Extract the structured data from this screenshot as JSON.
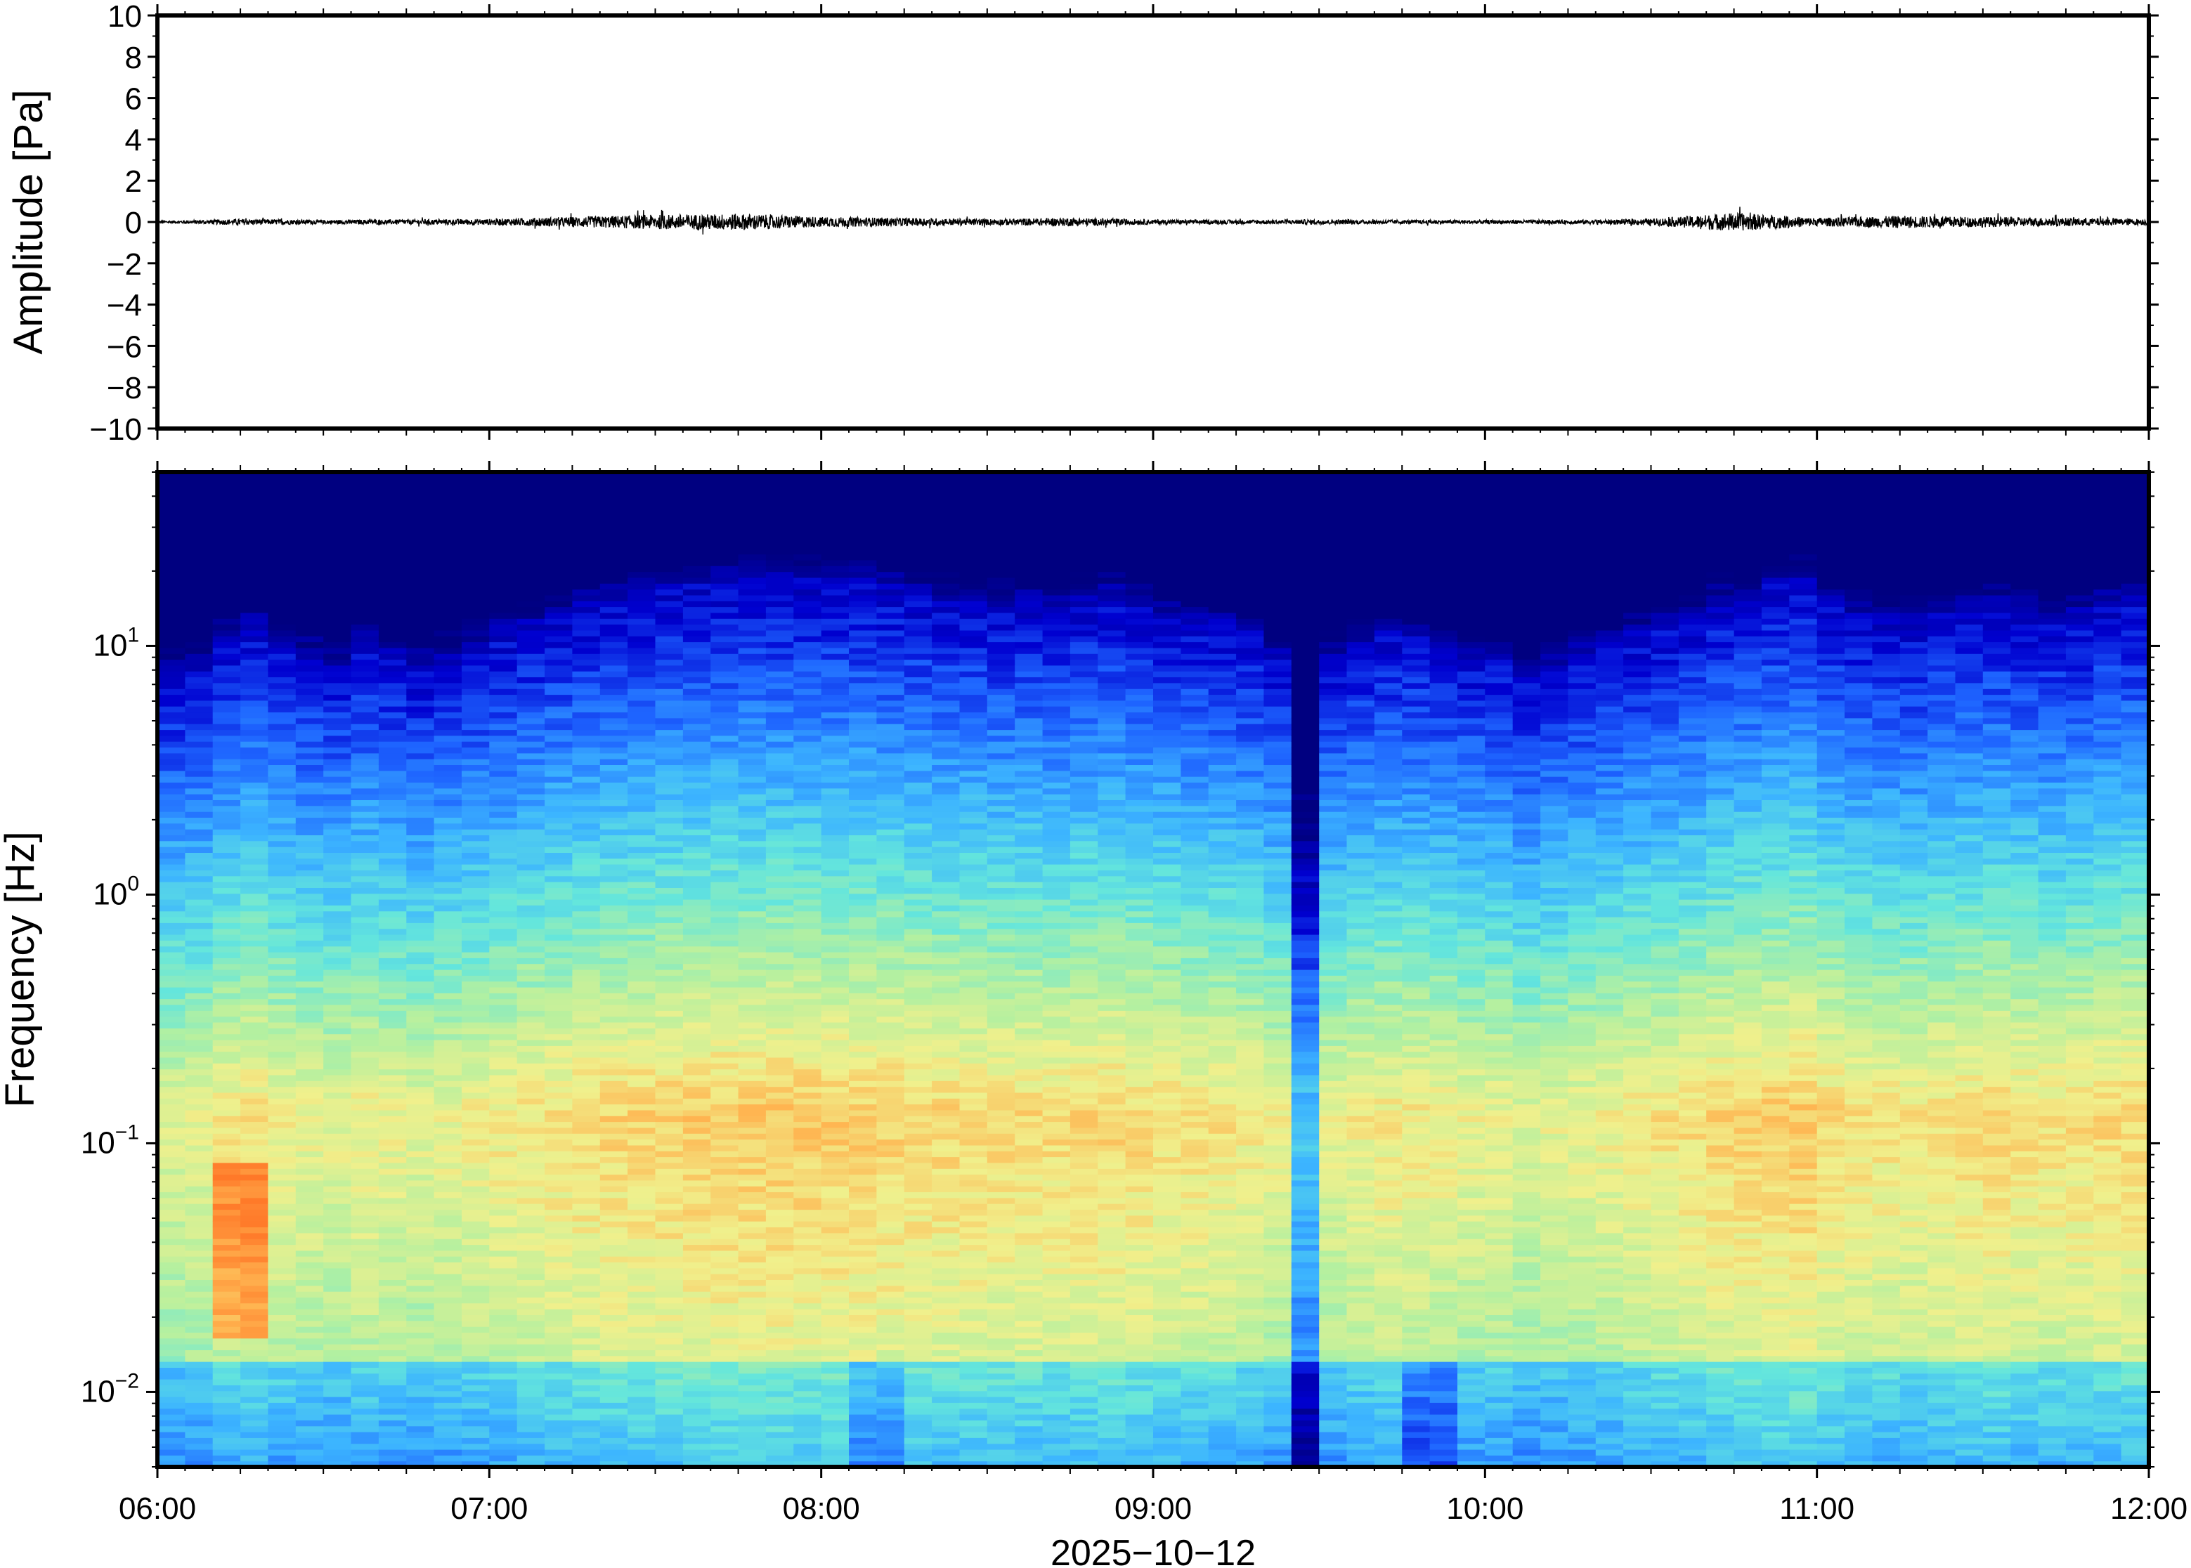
{
  "chart_data": [
    {
      "type": "line",
      "panel": "waveform",
      "title": "",
      "ylabel": "Amplitude [Pa]",
      "xlabel": "",
      "ylim": [
        -10,
        10
      ],
      "yticks": [
        10,
        8,
        6,
        4,
        2,
        0,
        -2,
        -4,
        -6,
        -8,
        -10
      ],
      "ytick_labels": [
        "10",
        "8",
        "6",
        "4",
        "2",
        "0",
        "−2",
        "−4",
        "−6",
        "−8",
        "−10"
      ],
      "xlim": [
        "06:00",
        "12:00"
      ],
      "series": [
        {
          "color": "#000000",
          "x": [
            "06:00",
            "06:15",
            "06:30",
            "06:45",
            "07:00",
            "07:15",
            "07:30",
            "07:45",
            "08:00",
            "08:15",
            "08:30",
            "08:45",
            "09:00",
            "09:15",
            "09:30",
            "09:45",
            "10:00",
            "10:15",
            "10:30",
            "10:45",
            "11:00",
            "11:15",
            "11:30",
            "11:45",
            "12:00"
          ],
          "envelope": [
            0.05,
            0.15,
            0.1,
            0.12,
            0.15,
            0.25,
            0.35,
            0.4,
            0.25,
            0.2,
            0.15,
            0.2,
            0.12,
            0.1,
            0.12,
            0.1,
            0.1,
            0.1,
            0.15,
            0.45,
            0.2,
            0.3,
            0.25,
            0.2,
            0.15
          ]
        }
      ]
    },
    {
      "type": "heatmap",
      "panel": "spectrogram",
      "title": "",
      "ylabel": "Frequency [Hz]",
      "xlabel": "2025−10−12",
      "yscale": "log",
      "ylim": [
        0.005,
        50
      ],
      "yticks": [
        10,
        1,
        0.1,
        0.01
      ],
      "ytick_labels": [
        {
          "base": "10",
          "exp": "1"
        },
        {
          "base": "10",
          "exp": "0"
        },
        {
          "base": "10",
          "exp": "−1"
        },
        {
          "base": "10",
          "exp": "−2"
        }
      ],
      "xticks": [
        "06:00",
        "07:00",
        "08:00",
        "09:00",
        "10:00",
        "11:00",
        "12:00"
      ],
      "colormap": [
        "#000080",
        "#0000d0",
        "#1e64ff",
        "#3cb4ff",
        "#64e6dc",
        "#b4f0a0",
        "#f0f08c",
        "#ffb450",
        "#ff7828"
      ],
      "time_columns": 72,
      "activity_by_column": [
        0.35,
        0.4,
        0.55,
        0.6,
        0.5,
        0.45,
        0.4,
        0.5,
        0.45,
        0.4,
        0.45,
        0.5,
        0.55,
        0.6,
        0.65,
        0.7,
        0.72,
        0.75,
        0.78,
        0.8,
        0.82,
        0.82,
        0.83,
        0.82,
        0.8,
        0.8,
        0.78,
        0.75,
        0.72,
        0.72,
        0.7,
        0.7,
        0.68,
        0.72,
        0.75,
        0.7,
        0.65,
        0.62,
        0.6,
        0.55,
        0.45,
        0.3,
        0.42,
        0.5,
        0.55,
        0.55,
        0.5,
        0.45,
        0.45,
        0.35,
        0.4,
        0.45,
        0.5,
        0.55,
        0.6,
        0.65,
        0.72,
        0.75,
        0.8,
        0.82,
        0.7,
        0.65,
        0.62,
        0.6,
        0.65,
        0.68,
        0.7,
        0.65,
        0.62,
        0.65,
        0.7,
        0.72
      ],
      "notable_features": [
        {
          "time": "06:10",
          "frequency_hz": 0.025,
          "level": "highest"
        },
        {
          "time": "09:15",
          "frequency_hz": 0.007,
          "level": "lowest"
        },
        {
          "time": "09:45",
          "frequency_hz": 0.007,
          "level": "low"
        },
        {
          "time": "08:10",
          "frequency_hz": 0.008,
          "level": "low"
        }
      ]
    }
  ],
  "axes": {
    "waveform_ylabel": "Amplitude [Pa]",
    "spectrogram_ylabel": "Frequency [Hz]",
    "date_label": "2025−10−12"
  }
}
